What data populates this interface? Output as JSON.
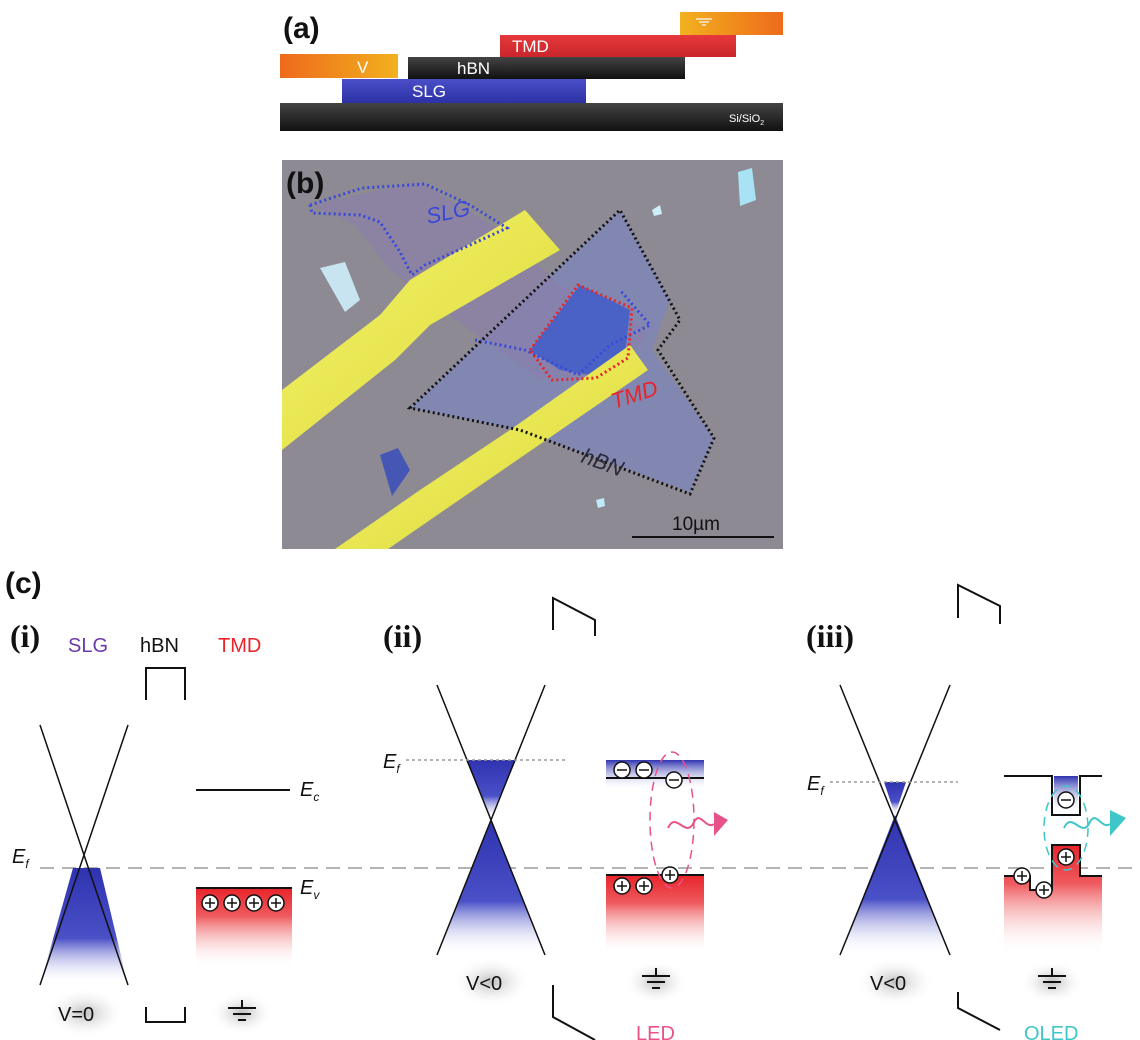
{
  "panel_labels": {
    "a": "(a)",
    "b": "(b)",
    "c": "(c)"
  },
  "stack": {
    "contact_v": "V",
    "tmd": "TMD",
    "hbn": "hBN",
    "slg": "SLG",
    "substrate": "Si/SiO",
    "substrate_sub": "2"
  },
  "micrograph": {
    "outlines": {
      "slg": "SLG",
      "tmd": "TMD",
      "hbn": "hBN"
    },
    "scale_bar": "10µm"
  },
  "band_diagrams": {
    "sub_i": "(i)",
    "sub_ii": "(ii)",
    "sub_iii": "(iii)",
    "header_slg": "SLG",
    "header_hbn": "hBN",
    "header_tmd": "TMD",
    "ef": "E",
    "ef_sub": "f",
    "ec": "E",
    "ec_sub": "c",
    "ev": "E",
    "ev_sub": "v",
    "bias_i": "V=0",
    "bias_ii": "V<0",
    "bias_iii": "V<0",
    "mode_ii": "LED",
    "mode_iii": "OLED"
  },
  "colors": {
    "slg_blue": "#3a3fb0",
    "tmd_red": "#e8242b",
    "hbn_black": "#111111",
    "contact_orange": "#e8761c",
    "contact_gold": "#f0b41e",
    "substrate_gray": "#8d8a94",
    "gold_electrode": "#ecec4a",
    "led_pink": "#e8528a",
    "oled_cyan": "#3ec6c8"
  }
}
